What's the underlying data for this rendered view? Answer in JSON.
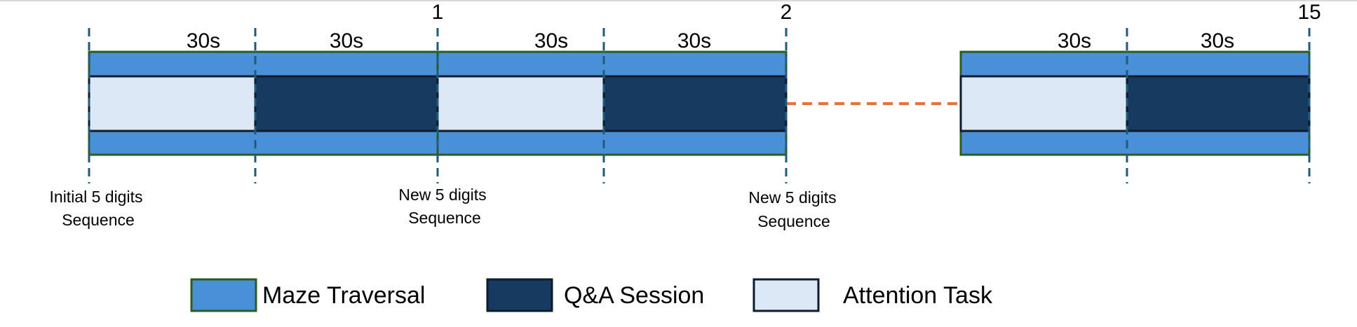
{
  "colors": {
    "maze_fill": "#4A90D9",
    "maze_border": "#2E5C1A",
    "qa_fill": "#173A60",
    "attention_fill": "#DCE8F5",
    "block_border": "#0D1B2A",
    "marker": "#1E5A7A",
    "connector": "#E8703A"
  },
  "rounds": [
    {
      "label": "1"
    },
    {
      "label": "2"
    },
    {
      "label": "15"
    }
  ],
  "segments": [
    {
      "duration": "30s",
      "task": "Attention Task"
    },
    {
      "duration": "30s",
      "task": "Q&A Session"
    },
    {
      "duration": "30s",
      "task": "Attention Task"
    },
    {
      "duration": "30s",
      "task": "Q&A Session"
    },
    {
      "duration": "30s",
      "task": "Attention Task"
    },
    {
      "duration": "30s",
      "task": "Q&A Session"
    }
  ],
  "annotations": [
    {
      "line1": "Initial 5 digits",
      "line2": "Sequence"
    },
    {
      "line1": "New 5 digits",
      "line2": "Sequence"
    },
    {
      "line1": "New 5 digits",
      "line2": "Sequence"
    }
  ],
  "legend": [
    {
      "label": "Maze Traversal",
      "swatch": "maze"
    },
    {
      "label": "Q&A Session",
      "swatch": "qa"
    },
    {
      "label": "Attention Task",
      "swatch": "attention"
    }
  ]
}
